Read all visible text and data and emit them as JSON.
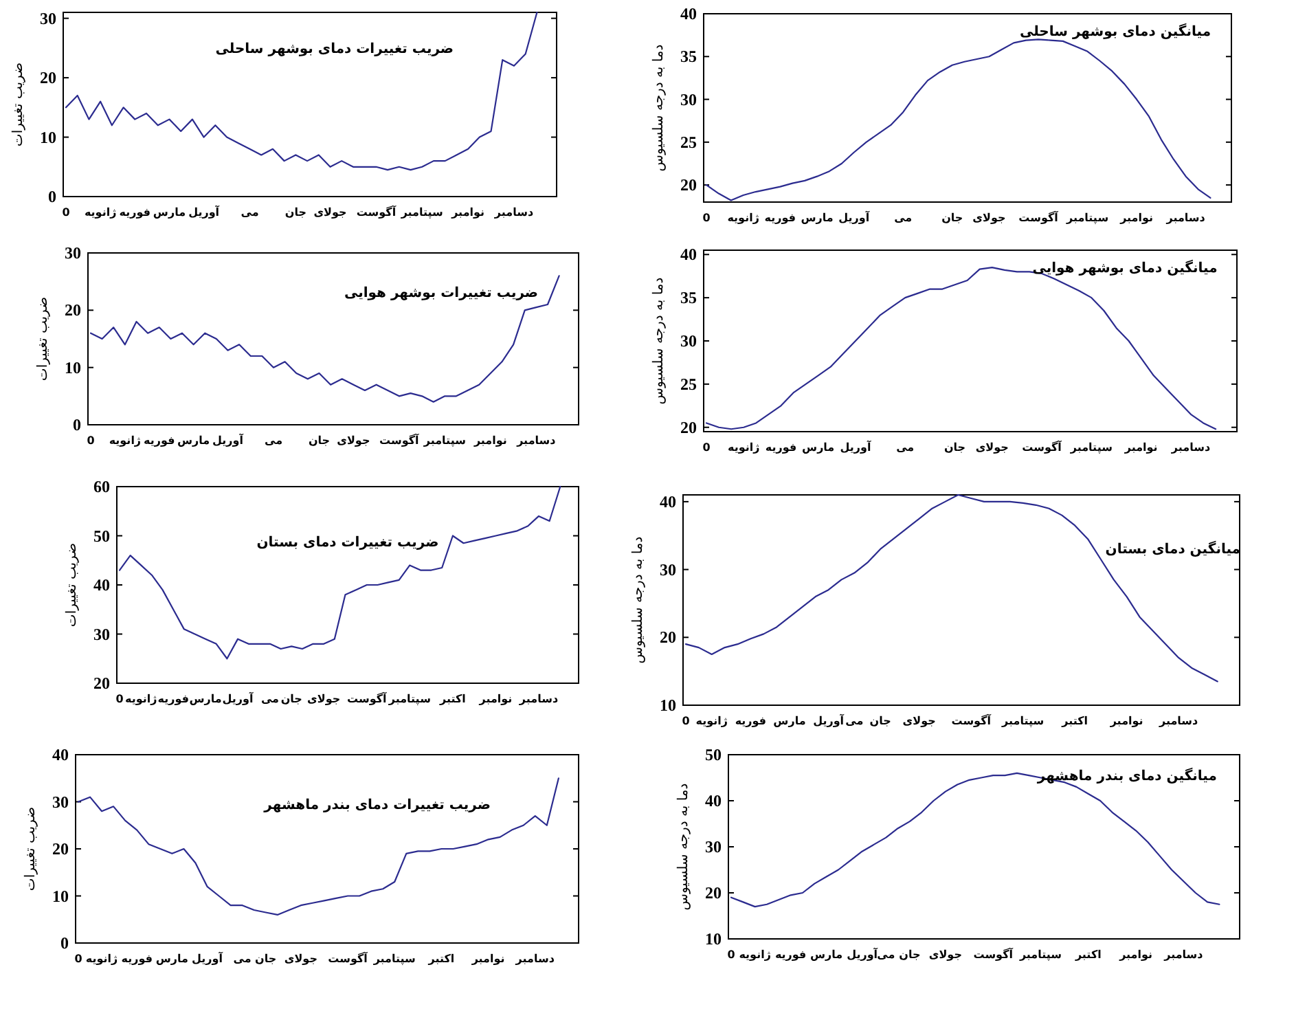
{
  "chart_data": [
    {
      "type": "line",
      "title": "ضریب تغییرات دمای بوشهر ساحلی",
      "ylabel": "ضریب تغییرات",
      "ylim": [
        0,
        31
      ],
      "yticks": [
        0,
        10,
        20,
        30
      ],
      "categories": [
        "0",
        null,
        null,
        "ژانویه",
        null,
        null,
        "فوریه",
        null,
        null,
        "مارس",
        null,
        null,
        "آوریل",
        null,
        null,
        null,
        "می",
        null,
        null,
        null,
        "جان",
        null,
        null,
        "جولای",
        null,
        null,
        null,
        "آگوست",
        null,
        null,
        null,
        "سپتامبر",
        null,
        null,
        null,
        "نوامبر",
        null,
        null,
        null,
        "دسامبر",
        null,
        null
      ],
      "series": [
        {
          "color": "#2b2b8f",
          "values": [
            15,
            17,
            13,
            16,
            12,
            15,
            13,
            14,
            12,
            13,
            11,
            13,
            10,
            12,
            10,
            9,
            8,
            7,
            8,
            6,
            7,
            6,
            7,
            5,
            6,
            5,
            5,
            5,
            4.5,
            5,
            4.5,
            5,
            6,
            6,
            7,
            8,
            10,
            11,
            23,
            22,
            24,
            31
          ]
        }
      ]
    },
    {
      "type": "line",
      "title": "میانگین دمای بوشهر ساحلی",
      "ylabel": "دما به درجه سلسیوس",
      "ylim": [
        18,
        40
      ],
      "yticks": [
        20,
        25,
        30,
        35,
        40
      ],
      "categories": [
        "0",
        null,
        null,
        "ژانویه",
        null,
        null,
        "فوریه",
        null,
        null,
        "مارس",
        null,
        null,
        "آوریل",
        null,
        null,
        null,
        "می",
        null,
        null,
        null,
        "جان",
        null,
        null,
        "جولای",
        null,
        null,
        null,
        "آگوست",
        null,
        null,
        null,
        "سپتامبر",
        null,
        null,
        null,
        "نوامبر",
        null,
        null,
        null,
        "دسامبر",
        null,
        null
      ],
      "series": [
        {
          "color": "#2b2b8f",
          "values": [
            20,
            19,
            18.2,
            18.8,
            19.2,
            19.5,
            19.8,
            20.2,
            20.5,
            21,
            21.6,
            22.5,
            23.8,
            25,
            26,
            27,
            28.5,
            30.5,
            32.2,
            33.2,
            34,
            34.4,
            34.7,
            35,
            35.8,
            36.6,
            36.9,
            37,
            36.9,
            36.8,
            36.2,
            35.6,
            34.5,
            33.3,
            31.8,
            30,
            28,
            25.3,
            23,
            21,
            19.5,
            18.5
          ]
        }
      ]
    },
    {
      "type": "line",
      "title": "ضریب تغییرات بوشهر هوایی",
      "ylabel": "ضریب تغییرات",
      "ylim": [
        0,
        30
      ],
      "yticks": [
        0,
        10,
        20,
        30
      ],
      "categories": [
        "0",
        null,
        null,
        "ژانویه",
        null,
        null,
        "فوریه",
        null,
        null,
        "مارس",
        null,
        null,
        "آوریل",
        null,
        null,
        null,
        "می",
        null,
        null,
        null,
        "جان",
        null,
        null,
        "جولای",
        null,
        null,
        null,
        "آگوست",
        null,
        null,
        null,
        "سپتامبر",
        null,
        null,
        null,
        "نوامبر",
        null,
        null,
        null,
        "دسامبر",
        null,
        null
      ],
      "series": [
        {
          "color": "#2b2b8f",
          "values": [
            16,
            15,
            17,
            14,
            18,
            16,
            17,
            15,
            16,
            14,
            16,
            15,
            13,
            14,
            12,
            12,
            10,
            11,
            9,
            8,
            9,
            7,
            8,
            7,
            6,
            7,
            6,
            5,
            5.5,
            5,
            4,
            5,
            5,
            6,
            7,
            9,
            11,
            14,
            20,
            20.5,
            21,
            26
          ]
        }
      ]
    },
    {
      "type": "line",
      "title": "میانگین دمای بوشهر هوایی",
      "ylabel": "دما به درجه سلسیوس",
      "ylim": [
        19.5,
        40.5
      ],
      "yticks": [
        20,
        25,
        30,
        35,
        40
      ],
      "categories": [
        "0",
        null,
        null,
        "ژانویه",
        null,
        null,
        "فوریه",
        null,
        null,
        "مارس",
        null,
        null,
        "آوریل",
        null,
        null,
        null,
        "می",
        null,
        null,
        null,
        "جان",
        null,
        null,
        "جولای",
        null,
        null,
        null,
        "آگوست",
        null,
        null,
        null,
        "سپتامبر",
        null,
        null,
        null,
        "نوامبر",
        null,
        null,
        null,
        "دسامبر",
        null,
        null
      ],
      "series": [
        {
          "color": "#2b2b8f",
          "values": [
            20.5,
            20,
            19.8,
            20,
            20.5,
            21.5,
            22.5,
            24,
            25,
            26,
            27,
            28.5,
            30,
            31.5,
            33,
            34,
            35,
            35.5,
            36,
            36,
            36.5,
            37,
            38.3,
            38.5,
            38.2,
            38,
            38,
            37.8,
            37.2,
            36.5,
            35.8,
            35,
            33.5,
            31.5,
            30,
            28,
            26,
            24.5,
            23,
            21.5,
            20.5,
            19.8
          ]
        }
      ]
    },
    {
      "type": "line",
      "title": "ضریب تغییرات دمای بستان",
      "ylabel": "ضریب تغییرات",
      "ylim": [
        20,
        60
      ],
      "yticks": [
        20,
        30,
        40,
        50,
        60
      ],
      "categories": [
        "0",
        null,
        "ژانویه",
        null,
        null,
        "فوریه",
        null,
        null,
        "مارس",
        null,
        null,
        "آوریل",
        null,
        null,
        "می",
        null,
        "جان",
        null,
        null,
        "جولای",
        null,
        null,
        null,
        "آگوست",
        null,
        null,
        null,
        "سپتامبر",
        null,
        null,
        null,
        "اکتبر",
        null,
        null,
        null,
        "نوامبر",
        null,
        null,
        null,
        "دسامبر",
        null,
        null
      ],
      "series": [
        {
          "color": "#2b2b8f",
          "values": [
            43,
            46,
            44,
            42,
            39,
            35,
            31,
            30,
            29,
            28,
            25,
            29,
            28,
            28,
            28,
            27,
            27.5,
            27,
            28,
            28,
            29,
            38,
            39,
            40,
            40,
            40.5,
            41,
            44,
            43,
            43,
            43.5,
            50,
            48.5,
            49,
            49.5,
            50,
            50.5,
            51,
            52,
            54,
            53,
            60
          ]
        }
      ]
    },
    {
      "type": "line",
      "title": "میانگین دمای بستان",
      "ylabel": "دما به درجه سلسیوس",
      "ylim": [
        10,
        41
      ],
      "yticks": [
        10,
        20,
        30,
        40
      ],
      "categories": [
        "0",
        null,
        "ژانویه",
        null,
        null,
        "فوریه",
        null,
        null,
        "مارس",
        null,
        null,
        "آوریل",
        null,
        "می",
        null,
        "جان",
        null,
        null,
        "جولای",
        null,
        null,
        null,
        "آگوست",
        null,
        null,
        null,
        "سپتامبر",
        null,
        null,
        null,
        "اکتبر",
        null,
        null,
        null,
        "نوامبر",
        null,
        null,
        null,
        "دسامبر",
        null,
        null,
        null
      ],
      "series": [
        {
          "color": "#2b2b8f",
          "values": [
            19,
            18.5,
            17.5,
            18.5,
            19,
            19.8,
            20.5,
            21.5,
            23,
            24.5,
            26,
            27,
            28.5,
            29.5,
            31,
            33,
            34.5,
            36,
            37.5,
            39,
            40,
            41,
            40.5,
            40,
            40,
            40,
            39.8,
            39.5,
            39,
            38,
            36.5,
            34.5,
            31.5,
            28.5,
            26,
            23,
            21,
            19,
            17,
            15.5,
            14.5,
            13.5
          ]
        }
      ]
    },
    {
      "type": "line",
      "title": "ضریب تغییرات دمای بندر ماهشهر",
      "ylabel": "ضریب تغییرات",
      "ylim": [
        0,
        40
      ],
      "yticks": [
        0,
        10,
        20,
        30,
        40
      ],
      "categories": [
        "0",
        null,
        "ژانویه",
        null,
        null,
        "فوریه",
        null,
        null,
        "مارس",
        null,
        null,
        "آوریل",
        null,
        null,
        "می",
        null,
        "جان",
        null,
        null,
        "جولای",
        null,
        null,
        null,
        "آگوست",
        null,
        null,
        null,
        "سپتامبر",
        null,
        null,
        null,
        "اکتبر",
        null,
        null,
        null,
        "نوامبر",
        null,
        null,
        null,
        "دسامبر",
        null,
        null
      ],
      "series": [
        {
          "color": "#2b2b8f",
          "values": [
            30,
            31,
            28,
            29,
            26,
            24,
            21,
            20,
            19,
            20,
            17,
            12,
            10,
            8,
            8,
            7,
            6.5,
            6,
            7,
            8,
            8.5,
            9,
            9.5,
            10,
            10,
            11,
            11.5,
            13,
            19,
            19.5,
            19.5,
            20,
            20,
            20.5,
            21,
            22,
            22.5,
            24,
            25,
            27,
            25,
            35
          ]
        }
      ]
    },
    {
      "type": "line",
      "title": "میانگین دمای بندر ماهشهر",
      "ylabel": "دما به درجه سلسیوس",
      "ylim": [
        10,
        50
      ],
      "yticks": [
        10,
        20,
        30,
        40,
        50
      ],
      "categories": [
        "0",
        null,
        "ژانویه",
        null,
        null,
        "فوریه",
        null,
        null,
        "مارس",
        null,
        null,
        "آوریل",
        null,
        "می",
        null,
        "جان",
        null,
        null,
        "جولای",
        null,
        null,
        null,
        "آگوست",
        null,
        null,
        null,
        "سپتامبر",
        null,
        null,
        null,
        "اکتبر",
        null,
        null,
        null,
        "نوامبر",
        null,
        null,
        null,
        "دسامبر",
        null,
        null,
        null
      ],
      "series": [
        {
          "color": "#2b2b8f",
          "values": [
            19,
            18,
            17,
            17.5,
            18.5,
            19.5,
            20,
            22,
            23.5,
            25,
            27,
            29,
            30.5,
            32,
            34,
            35.5,
            37.5,
            40,
            42,
            43.5,
            44.5,
            45,
            45.5,
            45.5,
            46,
            45.5,
            45,
            44.5,
            44,
            43,
            41.5,
            40,
            37.5,
            35.5,
            33.5,
            31,
            28,
            25,
            22.5,
            20,
            18,
            17.5
          ]
        }
      ]
    }
  ]
}
